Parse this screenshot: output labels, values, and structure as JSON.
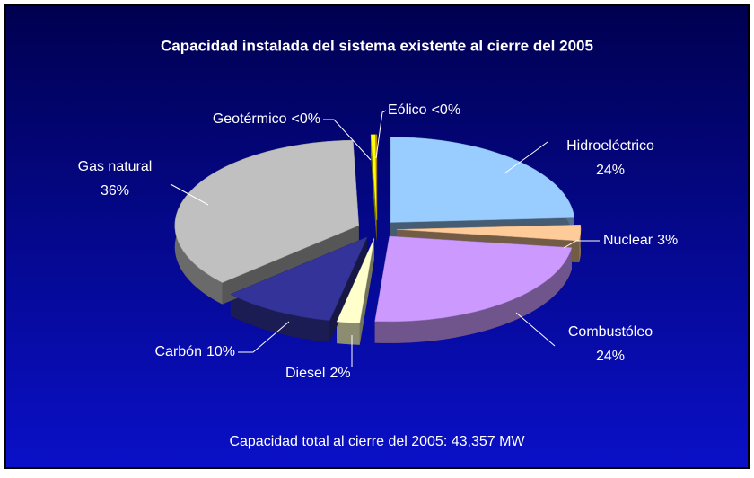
{
  "chart_data": {
    "type": "pie3d",
    "title": "Capacidad instalada del sistema existente al cierre del 2005",
    "note": "Capacidad total al cierre del 2005: 43,357 MW",
    "categories": [
      "Hidroeléctrico",
      "Nuclear",
      "Combustóleo",
      "Diesel",
      "Carbón",
      "Gas natural",
      "Geotérmico",
      "Eólico"
    ],
    "values": [
      24,
      3,
      24,
      2,
      10,
      36,
      0.4,
      0.1
    ],
    "value_labels": [
      "24%",
      "3%",
      "24%",
      "2%",
      "10%",
      "36%",
      "<0%",
      "<0%"
    ],
    "colors": [
      "#99ccff",
      "#ffcc99",
      "#cc99ff",
      "#ffffcc",
      "#333399",
      "#c0c0c0",
      "#ffff00",
      "#cc9900"
    ]
  }
}
